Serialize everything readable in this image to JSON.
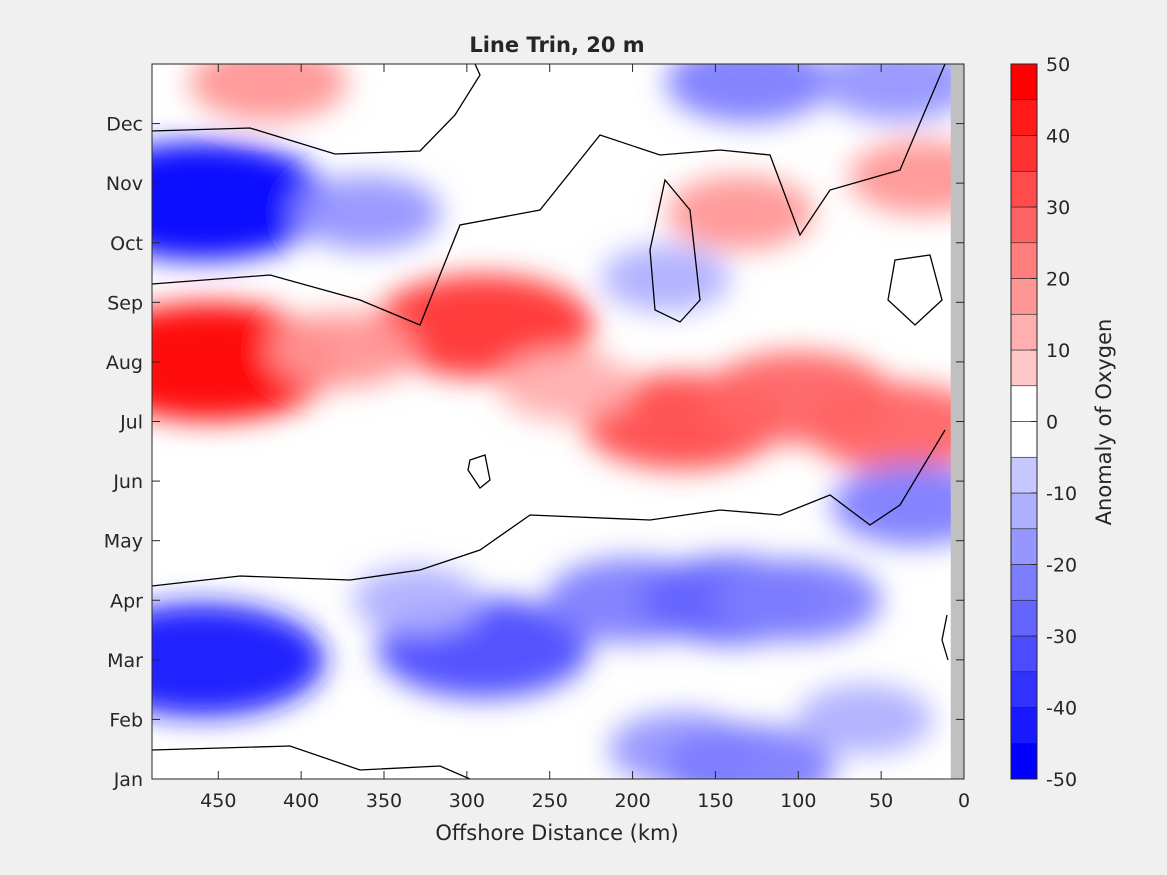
{
  "chart_data": {
    "type": "heatmap",
    "title": "Line Trin, 20 m",
    "xlabel": "Offshore Distance (km)",
    "ylabel": "",
    "x_reversed": true,
    "xlim": [
      490,
      0
    ],
    "x_ticks": [
      {
        "value": 450,
        "label": "450"
      },
      {
        "value": 400,
        "label": "400"
      },
      {
        "value": 350,
        "label": "350"
      },
      {
        "value": 300,
        "label": "300"
      },
      {
        "value": 250,
        "label": "250"
      },
      {
        "value": 200,
        "label": "200"
      },
      {
        "value": 150,
        "label": "150"
      },
      {
        "value": 100,
        "label": "100"
      },
      {
        "value": 50,
        "label": "50"
      },
      {
        "value": 0,
        "label": "0"
      }
    ],
    "ylim": [
      1,
      13
    ],
    "y_ticks": [
      {
        "value": 1,
        "label": "Jan"
      },
      {
        "value": 2,
        "label": "Feb"
      },
      {
        "value": 3,
        "label": "Mar"
      },
      {
        "value": 4,
        "label": "Apr"
      },
      {
        "value": 5,
        "label": "May"
      },
      {
        "value": 6,
        "label": "Jun"
      },
      {
        "value": 7,
        "label": "Jul"
      },
      {
        "value": 8,
        "label": "Aug"
      },
      {
        "value": 9,
        "label": "Sep"
      },
      {
        "value": 10,
        "label": "Oct"
      },
      {
        "value": 11,
        "label": "Nov"
      },
      {
        "value": 12,
        "label": "Dec"
      }
    ],
    "colorbar": {
      "label": "Anomaly of Oxygen",
      "range": [
        -50,
        50
      ],
      "step": 5,
      "ticks": [
        50,
        40,
        30,
        20,
        10,
        0,
        -10,
        -20,
        -30,
        -40,
        -50
      ],
      "tick_labels": [
        "50",
        "40",
        "30",
        "20",
        "10",
        "0",
        "-10",
        "-20",
        "-30",
        "-40",
        "-50"
      ]
    },
    "colors": {
      "positive": "#ff0000",
      "negative": "#0000ff",
      "neutral": "#ffffff",
      "no_data": "#c0c0c0"
    },
    "no_data_x_range": [
      8,
      0
    ],
    "anomaly_features": [
      {
        "x": 455,
        "y": 8.0,
        "value": 45
      },
      {
        "x": 290,
        "y": 8.6,
        "value": 35
      },
      {
        "x": 170,
        "y": 7.0,
        "value": 30
      },
      {
        "x": 100,
        "y": 7.4,
        "value": 27
      },
      {
        "x": 40,
        "y": 6.9,
        "value": 25
      },
      {
        "x": 25,
        "y": 11.1,
        "value": 15
      },
      {
        "x": 135,
        "y": 10.5,
        "value": 15
      },
      {
        "x": 420,
        "y": 12.7,
        "value": 18
      },
      {
        "x": 375,
        "y": 8.2,
        "value": 15
      },
      {
        "x": 240,
        "y": 7.6,
        "value": 12
      },
      {
        "x": 460,
        "y": 10.7,
        "value": -45
      },
      {
        "x": 360,
        "y": 10.5,
        "value": -15
      },
      {
        "x": 460,
        "y": 3.0,
        "value": -42
      },
      {
        "x": 290,
        "y": 3.2,
        "value": -33
      },
      {
        "x": 200,
        "y": 4.0,
        "value": -22
      },
      {
        "x": 140,
        "y": 4.0,
        "value": -25
      },
      {
        "x": 100,
        "y": 4.0,
        "value": -20
      },
      {
        "x": 170,
        "y": 1.5,
        "value": -15
      },
      {
        "x": 130,
        "y": 1.2,
        "value": -22
      },
      {
        "x": 30,
        "y": 5.6,
        "value": -20
      },
      {
        "x": 130,
        "y": 12.7,
        "value": -20
      },
      {
        "x": 40,
        "y": 12.7,
        "value": -18
      },
      {
        "x": 330,
        "y": 4.0,
        "value": -10
      },
      {
        "x": 60,
        "y": 2.0,
        "value": -12
      },
      {
        "x": 180,
        "y": 9.4,
        "value": -10
      }
    ]
  }
}
